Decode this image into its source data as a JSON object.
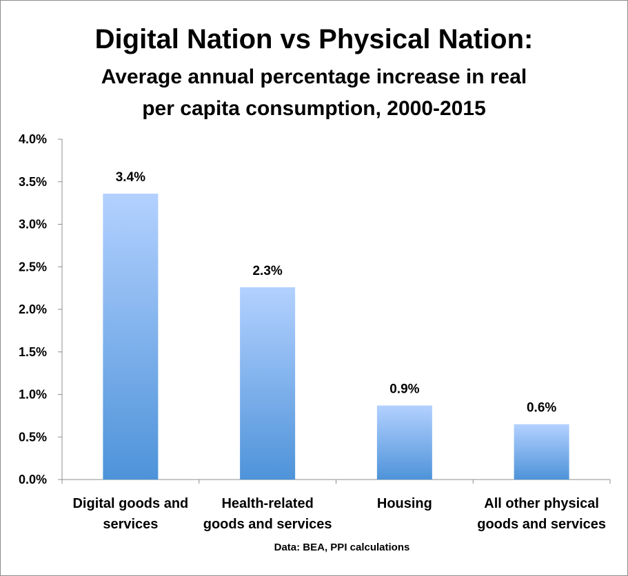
{
  "chart_data": {
    "type": "bar",
    "title": "Digital Nation vs Physical Nation:",
    "subtitle_lines": [
      "Average annual percentage increase in real",
      "per capita consumption, 2000-2015"
    ],
    "categories": [
      [
        "Digital goods and",
        "services"
      ],
      [
        "Health-related",
        "goods and services"
      ],
      [
        "Housing"
      ],
      [
        "All other physical",
        "goods and services"
      ]
    ],
    "values": [
      3.36,
      2.26,
      0.87,
      0.65
    ],
    "data_labels": [
      "3.4%",
      "2.3%",
      "0.9%",
      "0.6%"
    ],
    "ylim": [
      0,
      4.0
    ],
    "yticks": [
      0.0,
      0.5,
      1.0,
      1.5,
      2.0,
      2.5,
      3.0,
      3.5,
      4.0
    ],
    "ytick_labels": [
      "0.0%",
      "0.5%",
      "1.0%",
      "1.5%",
      "2.0%",
      "2.5%",
      "3.0%",
      "3.5%",
      "4.0%"
    ],
    "xlabel": "",
    "ylabel": "",
    "grid": false,
    "legend": "none",
    "source": "Data: BEA, PPI calculations",
    "colors": {
      "bar_top": "#b3d1ff",
      "bar_bottom": "#4e93d9",
      "axis": "#8c8c8c"
    }
  }
}
